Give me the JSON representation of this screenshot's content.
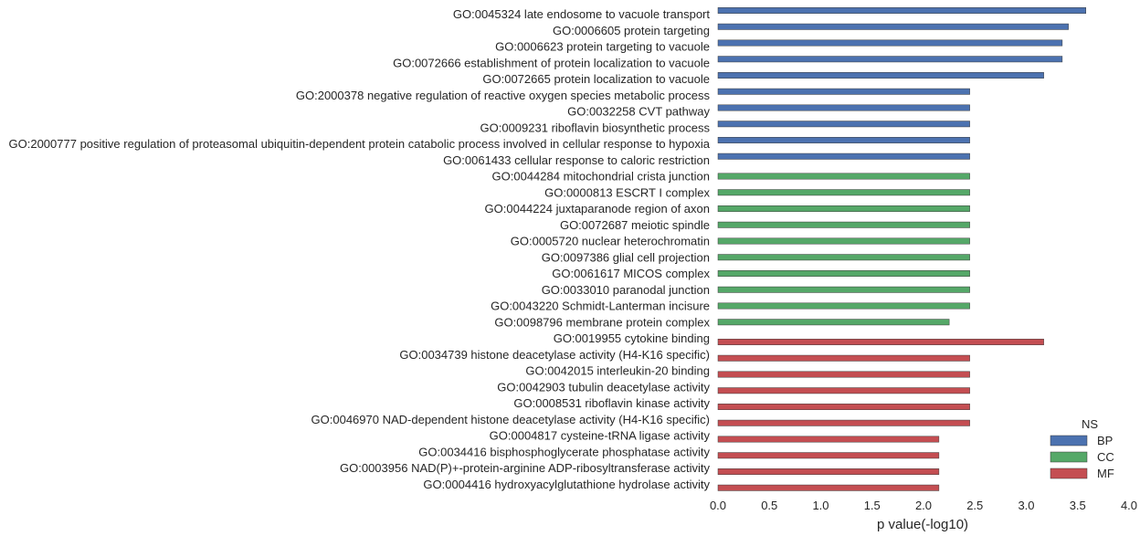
{
  "chart_data": {
    "type": "bar",
    "orientation": "horizontal",
    "title": "",
    "xlabel": "p value(-log10)",
    "ylabel": "",
    "xlim": [
      0,
      4
    ],
    "xticks": [
      "0.0",
      "0.5",
      "1.0",
      "1.5",
      "2.0",
      "2.5",
      "3.0",
      "3.5",
      "4.0"
    ],
    "grid": false,
    "legend": {
      "title": "NS",
      "placement": "bottom-right",
      "entries": [
        {
          "name": "BP",
          "color": "#4c72b0"
        },
        {
          "name": "CC",
          "color": "#55a868"
        },
        {
          "name": "MF",
          "color": "#c44e52"
        }
      ]
    },
    "categories": [
      "GO:0045324 late endosome to vacuole transport",
      "GO:0006605 protein targeting",
      "GO:0006623 protein targeting to vacuole",
      "GO:0072666 establishment of protein localization to vacuole",
      "GO:0072665 protein localization to vacuole",
      "GO:2000378 negative regulation of reactive oxygen species metabolic process",
      "GO:0032258 CVT pathway",
      "GO:0009231 riboflavin biosynthetic process",
      "GO:2000777 positive regulation of proteasomal ubiquitin-dependent protein catabolic process involved in cellular response to hypoxia",
      "GO:0061433 cellular response to caloric restriction",
      "GO:0044284 mitochondrial crista junction",
      "GO:0000813 ESCRT I complex",
      "GO:0044224 juxtaparanode region of axon",
      "GO:0072687 meiotic spindle",
      "GO:0005720 nuclear heterochromatin",
      "GO:0097386 glial cell projection",
      "GO:0061617 MICOS complex",
      "GO:0033010 paranodal junction",
      "GO:0043220 Schmidt-Lanterman incisure",
      "GO:0098796 membrane protein complex",
      "GO:0019955 cytokine binding",
      "GO:0034739 histone deacetylase activity (H4-K16 specific)",
      "GO:0042015 interleukin-20 binding",
      "GO:0042903 tubulin deacetylase activity",
      "GO:0008531 riboflavin kinase activity",
      "GO:0046970 NAD-dependent histone deacetylase activity (H4-K16 specific)",
      "GO:0004817 cysteine-tRNA ligase activity",
      "GO:0034416 bisphosphoglycerate phosphatase activity",
      "GO:0003956 NAD(P)+-protein-arginine ADP-ribosyltransferase activity",
      "GO:0004416 hydroxyacylglutathione hydrolase activity"
    ],
    "values": [
      3.58,
      3.41,
      3.35,
      3.35,
      3.17,
      2.45,
      2.45,
      2.45,
      2.45,
      2.45,
      2.45,
      2.45,
      2.45,
      2.45,
      2.45,
      2.45,
      2.45,
      2.45,
      2.45,
      2.25,
      3.17,
      2.45,
      2.45,
      2.45,
      2.45,
      2.45,
      2.15,
      2.15,
      2.15,
      2.15
    ],
    "groups": [
      "BP",
      "BP",
      "BP",
      "BP",
      "BP",
      "BP",
      "BP",
      "BP",
      "BP",
      "BP",
      "CC",
      "CC",
      "CC",
      "CC",
      "CC",
      "CC",
      "CC",
      "CC",
      "CC",
      "CC",
      "MF",
      "MF",
      "MF",
      "MF",
      "MF",
      "MF",
      "MF",
      "MF",
      "MF",
      "MF"
    ]
  }
}
